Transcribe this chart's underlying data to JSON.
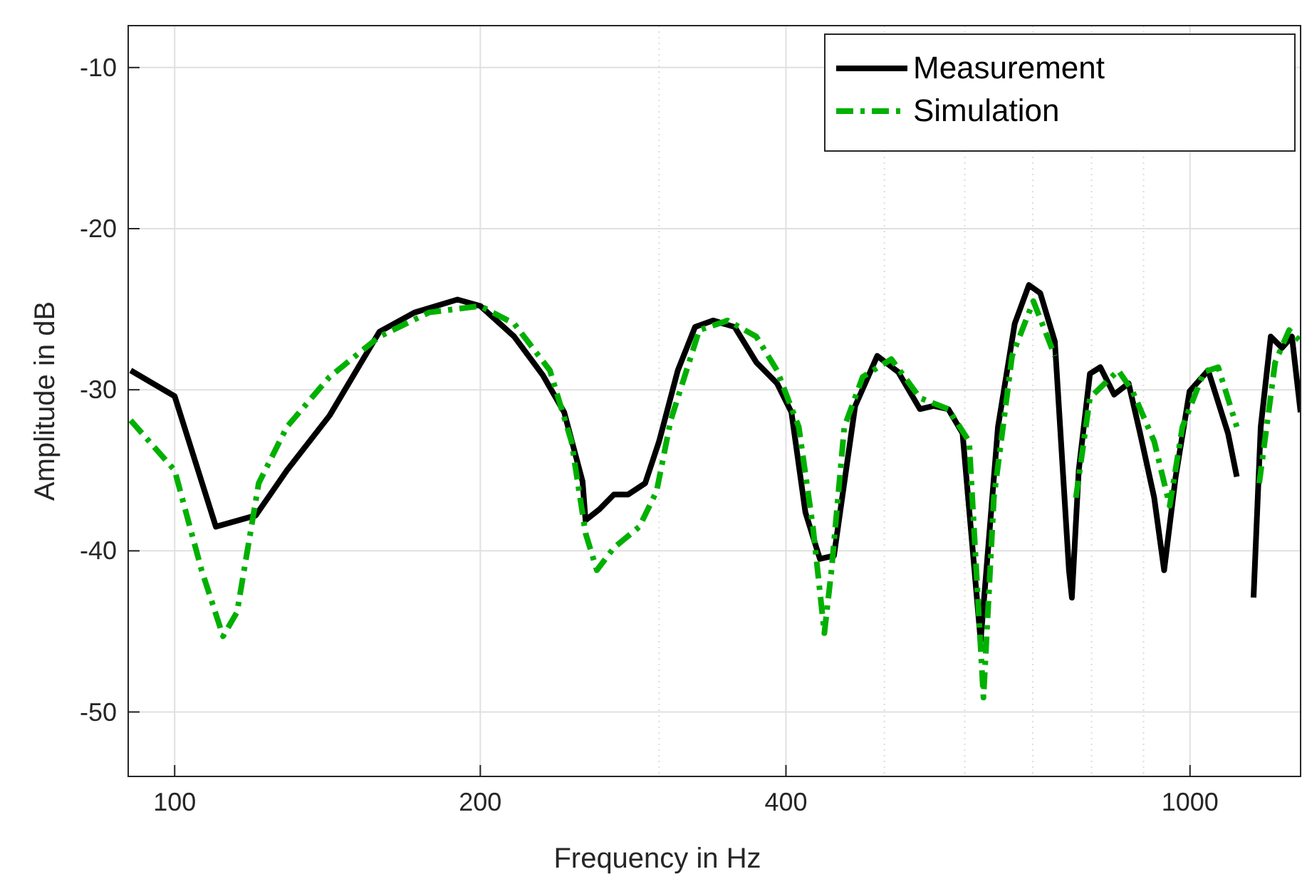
{
  "chart_data": {
    "type": "line",
    "xlabel": "Frequency in Hz",
    "ylabel": "Amplitude in dB",
    "log": "x",
    "grid": true,
    "legend": "top right",
    "xlim": [
      90,
      1285
    ],
    "ylim": [
      -54,
      -7.4
    ],
    "xticks": [
      100,
      200,
      400,
      1000
    ],
    "yticks": [
      -50,
      -40,
      -30,
      -20,
      -10
    ],
    "series": [
      {
        "name": "Measurement",
        "color": "#000000",
        "line_style": "solid",
        "x": [
          90.5,
          100,
          109.8,
          120.2,
          129,
          142.1,
          159.1,
          172.4,
          189.9,
          200,
          216,
          230.5,
          241.9,
          252.2,
          253.9,
          262.2,
          270.8,
          279.7,
          290.7,
          300,
          313,
          325.5,
          339,
          356,
          374,
          392,
          405,
          418,
          432,
          446,
          468,
          492,
          516,
          542,
          559,
          578,
          597,
          622,
          647,
          672,
          694,
          712,
          736,
          760,
          765,
          777,
          797,
          816,
          842,
          870,
          893,
          922,
          943,
          968,
          999,
          1042,
          1090,
          1112,
          1137,
          1155,
          1174,
          1201,
          1232,
          1260,
          1285
        ],
        "values": [
          -28.8,
          -30.4,
          -38.5,
          -37.8,
          -35,
          -31.6,
          -26.4,
          -25.2,
          -24.4,
          -24.8,
          -26.7,
          -29.1,
          -31.4,
          -35.7,
          -38.1,
          -37.4,
          -36.5,
          -36.5,
          -35.8,
          -33.2,
          -28.8,
          -26.1,
          -25.7,
          -26.1,
          -28.3,
          -29.6,
          -31.4,
          -37.6,
          -40.5,
          -40.3,
          -31,
          -27.9,
          -28.9,
          -31.2,
          -31,
          -31.2,
          -32.7,
          -45.6,
          -32.3,
          -25.9,
          -23.5,
          -24,
          -27,
          -41.2,
          -42.9,
          -35,
          -29,
          -28.6,
          -30.3,
          -29.6,
          -32.7,
          -36.7,
          -41.2,
          -35.4,
          -30.1,
          -28.8,
          -32.7,
          -35.4,
          null,
          -42.9,
          -32.3,
          -26.7,
          -27.4,
          -26.7,
          -31.4
        ]
      },
      {
        "name": "Simulation",
        "color": "#00b000",
        "line_style": "dashed",
        "x": [
          90.5,
          100,
          106.3,
          111.6,
          115.2,
          121,
          129,
          142.1,
          159.1,
          178.1,
          200,
          216,
          234.2,
          245.9,
          253.9,
          260.5,
          270.8,
          286.9,
          298.3,
          308,
          328.6,
          350.5,
          374,
          392,
          411.8,
          425.2,
          436.4,
          443.5,
          456.6,
          476,
          508,
          542,
          578,
          606,
          626,
          641,
          668,
          701,
          736,
          755,
          772,
          797,
          850,
          878,
          922,
          955,
          983,
          1032,
          1066,
          1112,
          1144,
          1170,
          1213,
          1252,
          1285
        ],
        "values": [
          -31.9,
          -35,
          -41.2,
          -45.3,
          -43.8,
          -35.8,
          -32.3,
          -29.2,
          -26.7,
          -25.2,
          -24.8,
          -25.9,
          -28.8,
          -33.2,
          -38.9,
          -41.2,
          -39.8,
          -38.5,
          -36.3,
          -31.9,
          -26.3,
          -25.7,
          -26.7,
          -28.8,
          -32.3,
          -38.5,
          -45.1,
          -41.2,
          -32.3,
          -29.2,
          -28.1,
          -30.5,
          -31.2,
          -33.2,
          -49.1,
          -36.7,
          -27.9,
          -24.5,
          -27.9,
          null,
          -36.7,
          -30.5,
          -28.8,
          -30.1,
          -33.2,
          -37.2,
          -32.3,
          -28.9,
          -28.6,
          -32.3,
          null,
          -35.8,
          -28.3,
          -26.3,
          -27
        ]
      }
    ]
  }
}
